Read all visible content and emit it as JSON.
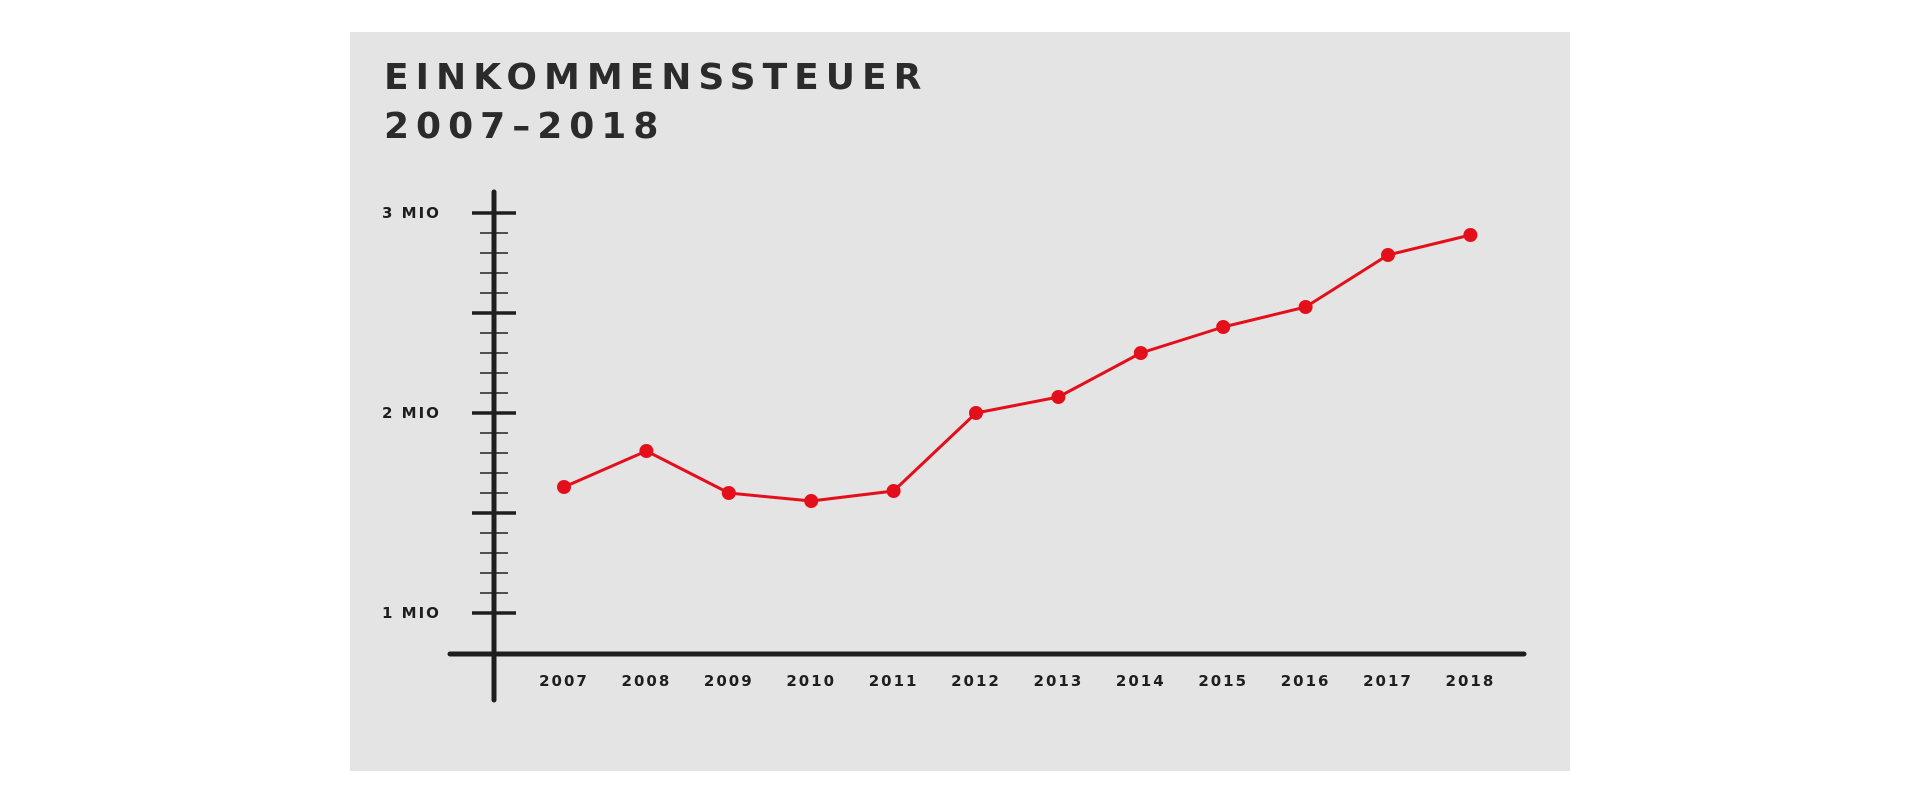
{
  "title_line1": "EINKOMMENSSTEUER",
  "title_line2": "2007–2018",
  "colors": {
    "background": "#e4e4e4",
    "line": "#e3101c",
    "axis": "#1e1e1e",
    "text": "#2b2b2b"
  },
  "chart_data": {
    "type": "line",
    "title": "EINKOMMENSSTEUER 2007–2018",
    "xlabel": "",
    "ylabel": "",
    "categories": [
      "2007",
      "2008",
      "2009",
      "2010",
      "2011",
      "2012",
      "2013",
      "2014",
      "2015",
      "2016",
      "2017",
      "2018"
    ],
    "series": [
      {
        "values": [
          1.63,
          1.81,
          1.6,
          1.56,
          1.61,
          2.0,
          2.08,
          2.3,
          2.43,
          2.53,
          2.79,
          2.89
        ]
      }
    ],
    "ylim": [
      0.8,
      3.1
    ],
    "yticks": [
      {
        "value": 1,
        "label": "1 MIO"
      },
      {
        "value": 2,
        "label": "2 MIO"
      },
      {
        "value": 3,
        "label": "3 MIO"
      }
    ],
    "grid": false,
    "legend": "none"
  }
}
